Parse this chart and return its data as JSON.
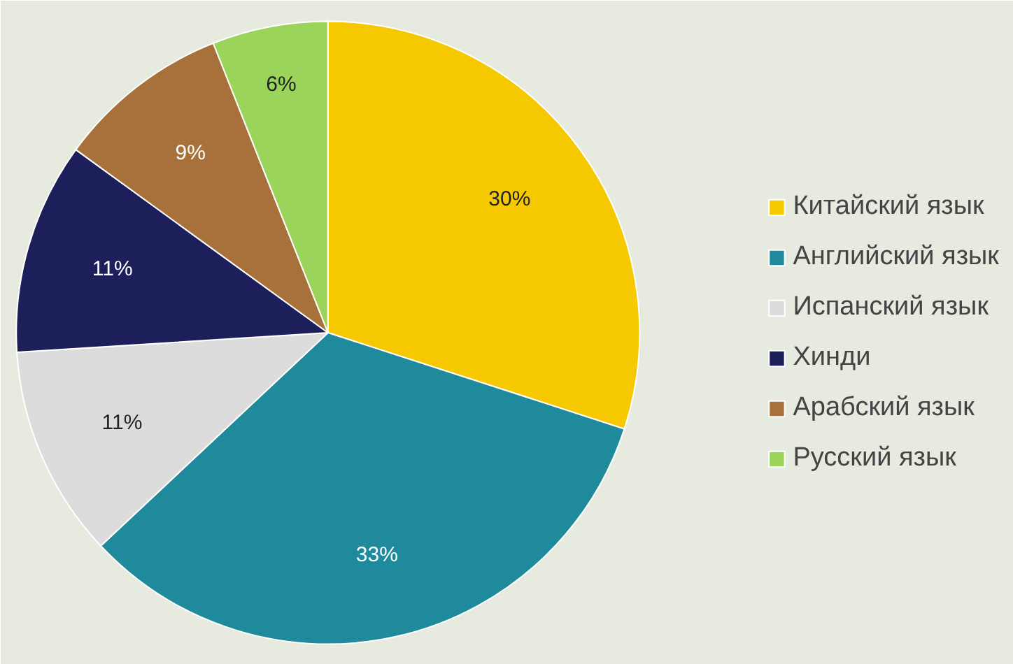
{
  "chart_data": {
    "type": "pie",
    "categories": [
      "Китайский язык",
      "Английский язык",
      "Испанский язык",
      "Хинди",
      "Арабский язык",
      "Русский язык"
    ],
    "values": [
      30,
      33,
      11,
      11,
      9,
      6
    ],
    "colors": [
      "#f5c800",
      "#1f8a9b",
      "#dcdcdc",
      "#1c1f5a",
      "#a8703a",
      "#9ad45a"
    ],
    "value_labels": [
      "30%",
      "33%",
      "11%",
      "11%",
      "9%",
      "6%"
    ],
    "legend": "right"
  }
}
